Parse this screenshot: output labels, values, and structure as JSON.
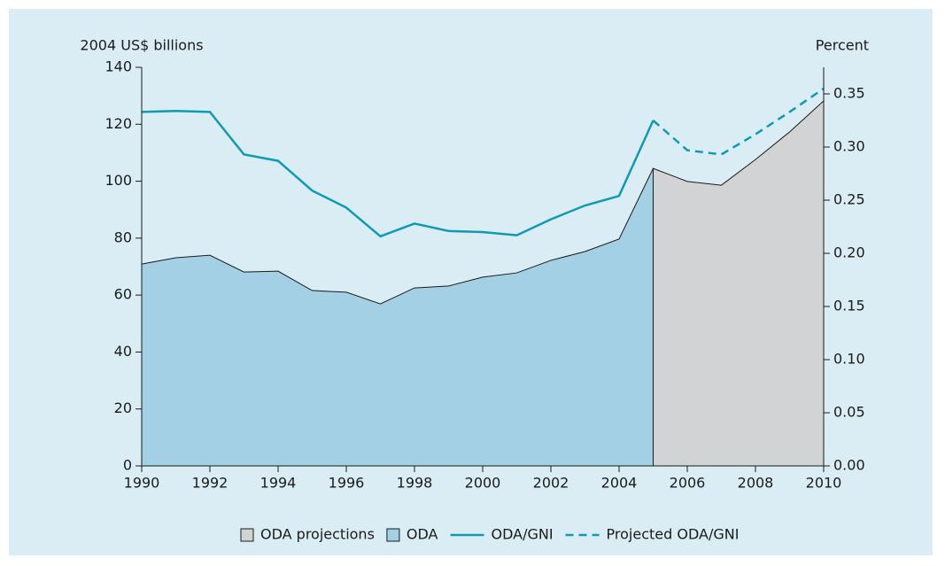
{
  "chart_data": {
    "type": "line",
    "y_label": "2004 US$ billions",
    "y2_label": "Percent",
    "x": [
      1990,
      1991,
      1992,
      1993,
      1994,
      1995,
      1996,
      1997,
      1998,
      1999,
      2000,
      2001,
      2002,
      2003,
      2004,
      2005,
      2006,
      2007,
      2008,
      2009,
      2010
    ],
    "xlim": [
      1990,
      2010
    ],
    "xticks": [
      1990,
      1992,
      1994,
      1996,
      1998,
      2000,
      2002,
      2004,
      2006,
      2008,
      2010
    ],
    "ylim": [
      0,
      140
    ],
    "yticks": [
      0,
      20,
      40,
      60,
      80,
      100,
      120,
      140
    ],
    "y2lim": [
      0,
      0.375
    ],
    "y2ticks": [
      {
        "value": 0,
        "label": "0.00"
      },
      {
        "value": 0.05,
        "label": "0.05"
      },
      {
        "value": 0.1,
        "label": "0.10"
      },
      {
        "value": 0.15,
        "label": "0.15"
      },
      {
        "value": 0.2,
        "label": "0.20"
      },
      {
        "value": 0.25,
        "label": "0.25"
      },
      {
        "value": 0.3,
        "label": "0.30"
      },
      {
        "value": 0.35,
        "label": "0.35"
      }
    ],
    "series": [
      {
        "name": "ODA projections",
        "kind": "area",
        "color": "#d1d3d4",
        "values": [
          null,
          null,
          null,
          null,
          null,
          null,
          null,
          null,
          null,
          null,
          null,
          null,
          null,
          null,
          null,
          104.5,
          99.9,
          98.6,
          107.6,
          117.3,
          128.2
        ]
      },
      {
        "name": "ODA",
        "kind": "area",
        "color": "#a3d0e4",
        "values": [
          70.9,
          73.1,
          74.0,
          68.1,
          68.4,
          61.6,
          61.0,
          56.9,
          62.5,
          63.2,
          66.3,
          67.8,
          72.2,
          75.3,
          79.7,
          104.5,
          null,
          null,
          null,
          null,
          null
        ]
      },
      {
        "name": "ODA/GNI",
        "kind": "line",
        "dash": false,
        "axis": "y2",
        "color": "#0f9ab4",
        "values": [
          0.333,
          0.334,
          0.333,
          0.293,
          0.287,
          0.259,
          0.243,
          0.216,
          0.228,
          0.221,
          0.22,
          0.217,
          0.232,
          0.245,
          0.254,
          0.325,
          null,
          null,
          null,
          null,
          null
        ]
      },
      {
        "name": "Projected ODA/GNI",
        "kind": "line",
        "dash": true,
        "axis": "y2",
        "color": "#0f9ab4",
        "values": [
          null,
          null,
          null,
          null,
          null,
          null,
          null,
          null,
          null,
          null,
          null,
          null,
          null,
          null,
          null,
          0.325,
          0.297,
          0.293,
          0.312,
          0.333,
          0.355
        ]
      }
    ]
  }
}
